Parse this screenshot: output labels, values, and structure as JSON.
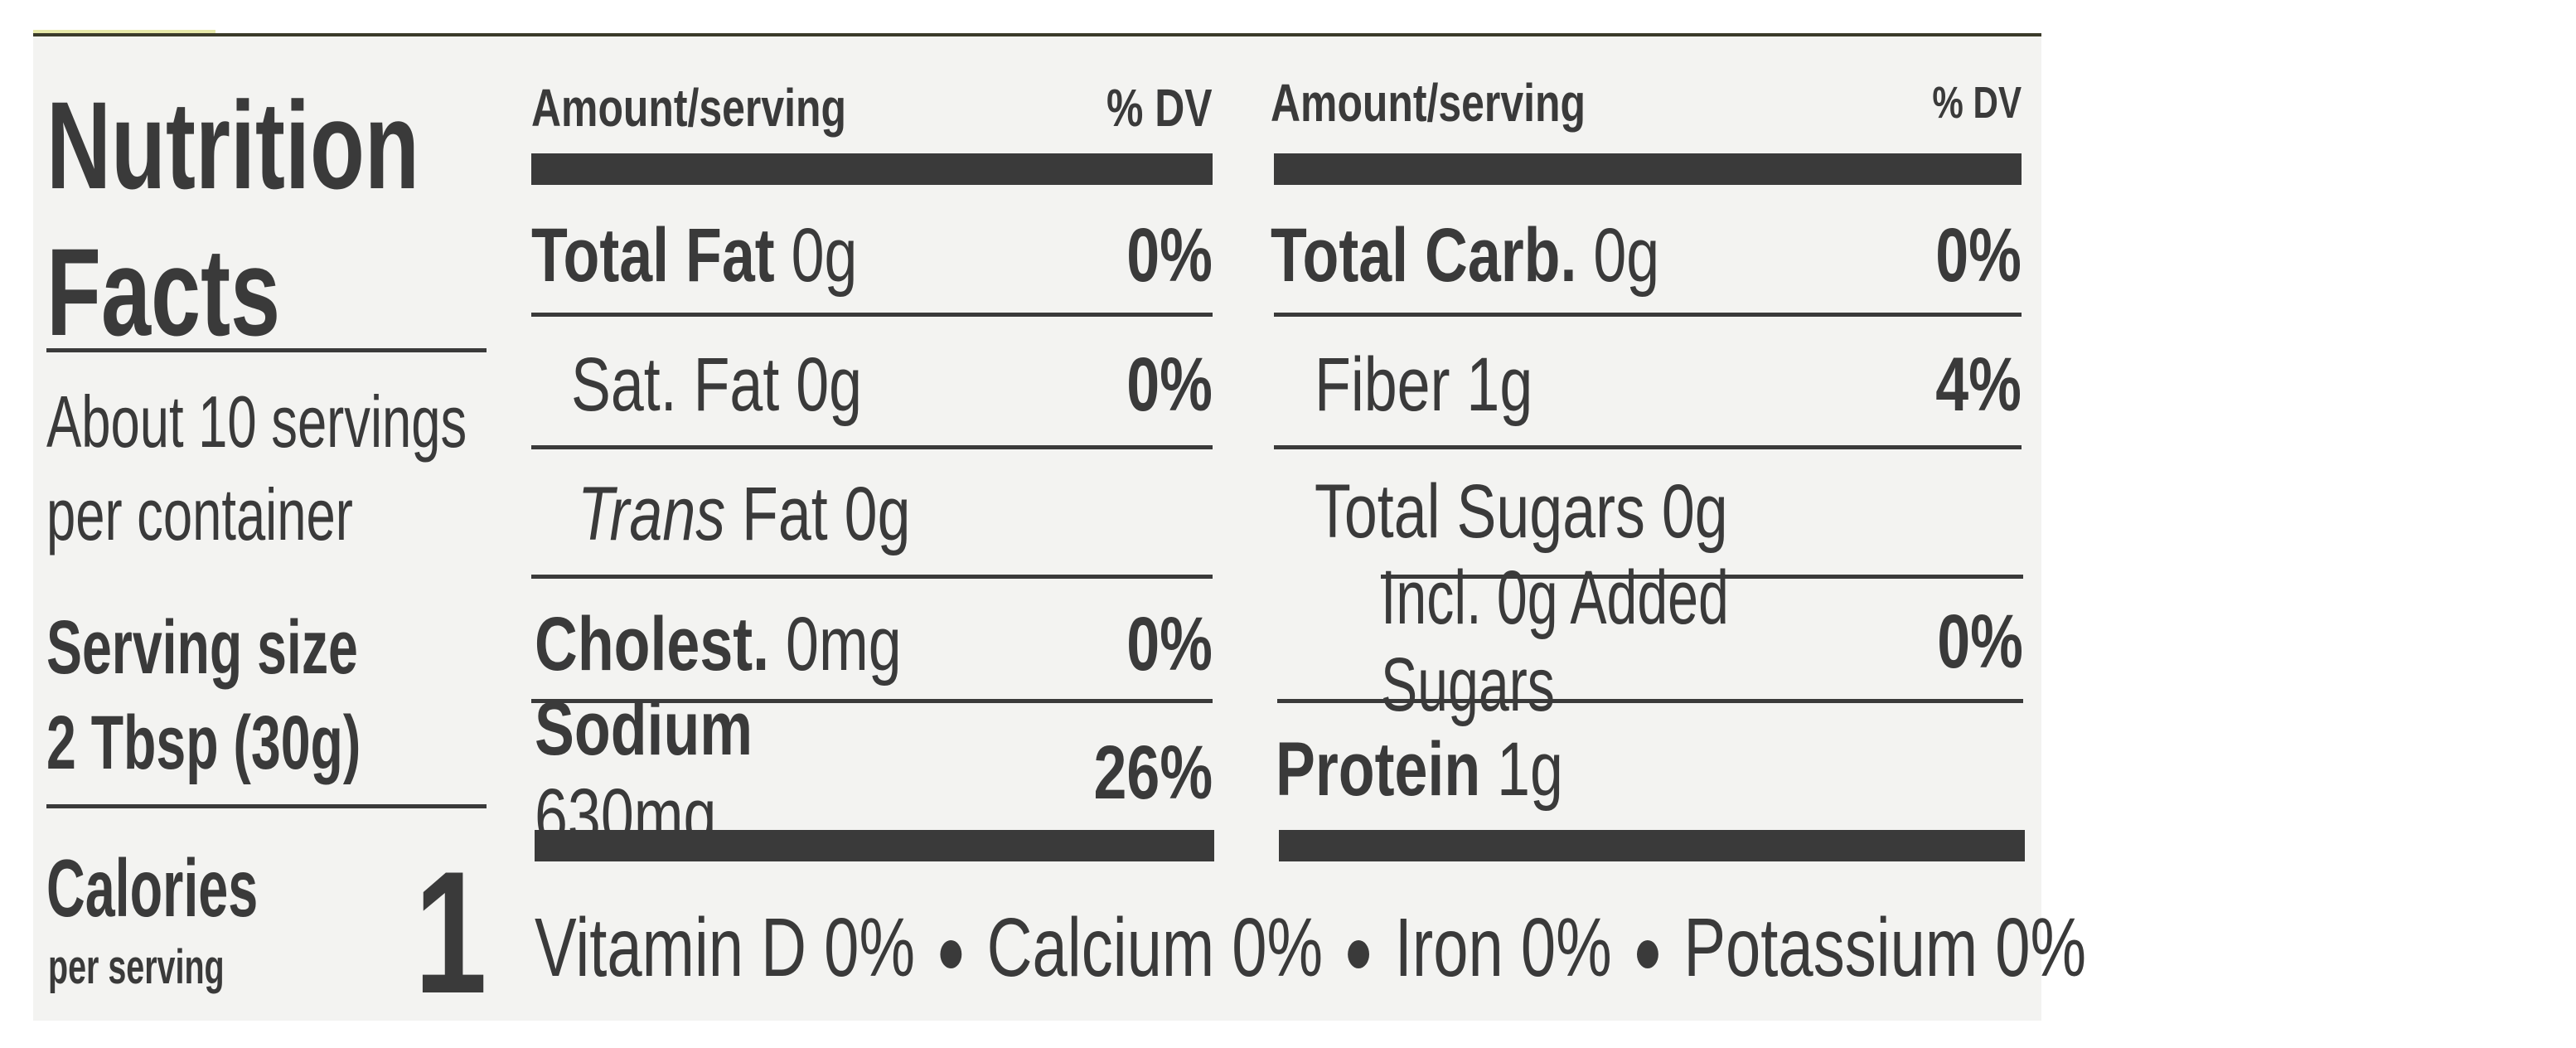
{
  "left": {
    "title_line1": "Nutrition",
    "title_line2": "Facts",
    "servings_line1": "About 10 servings",
    "servings_line2": "per container",
    "serving_size_label": "Serving size",
    "serving_size_value": "2 Tbsp (30g)",
    "calories_label": "Calories",
    "calories_sub": "per serving",
    "calories_value": "1"
  },
  "middle": {
    "header_amount": "Amount/serving",
    "header_dv": "% DV",
    "rows": [
      {
        "label": "Total Fat",
        "amount": "0g",
        "dv": "0%"
      },
      {
        "label": "Sat. Fat",
        "amount": "0g",
        "dv": "0%"
      },
      {
        "label_italic": "Trans",
        "label": "Fat",
        "amount": "0g",
        "dv": ""
      },
      {
        "label": "Cholest.",
        "amount": "0mg",
        "dv": "0%"
      },
      {
        "label": "Sodium",
        "amount": "630mg",
        "dv": "26%"
      }
    ]
  },
  "right": {
    "header_amount": "Amount/serving",
    "header_dv": "% DV",
    "rows": [
      {
        "label": "Total Carb.",
        "amount": "0g",
        "dv": "0%"
      },
      {
        "label": "Fiber",
        "amount": "1g",
        "dv": "4%"
      },
      {
        "label": "Total Sugars",
        "amount": "0g",
        "dv": ""
      },
      {
        "label": "Incl. 0g Added Sugars",
        "amount": "",
        "dv": "0%"
      },
      {
        "label": "Protein",
        "amount": "1g",
        "dv": ""
      }
    ]
  },
  "footer": {
    "items": [
      {
        "name": "Vitamin D",
        "dv": "0%"
      },
      {
        "name": "Calcium",
        "dv": "0%"
      },
      {
        "name": "Iron",
        "dv": "0%"
      },
      {
        "name": "Potassium",
        "dv": "0%"
      }
    ]
  }
}
